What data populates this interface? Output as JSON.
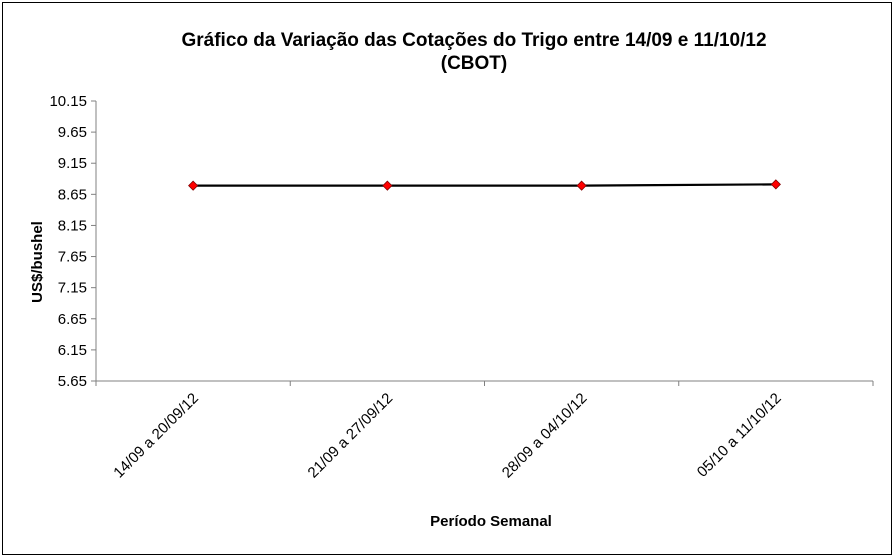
{
  "chart_data": {
    "type": "line",
    "title": "Gráfico da Variação das Cotações do Trigo entre 14/09 e 11/10/12",
    "subtitle": "(CBOT)",
    "xlabel": "Período Semanal",
    "ylabel": "US$/bushel",
    "categories": [
      "14/09 a 20/09/12",
      "21/09 a 27/09/12",
      "28/09 a 04/10/12",
      "05/10 a 11/10/12"
    ],
    "yticks": [
      "5.65",
      "6.15",
      "6.65",
      "7.15",
      "7.65",
      "8.15",
      "8.65",
      "9.15",
      "9.65",
      "10.15"
    ],
    "ylim": [
      5.65,
      10.15
    ],
    "series": [
      {
        "values": [
          8.79,
          8.79,
          8.79,
          8.81
        ]
      }
    ],
    "line_color": "#000000",
    "marker_color": "#ff0000",
    "grid": false,
    "legend": "none"
  }
}
